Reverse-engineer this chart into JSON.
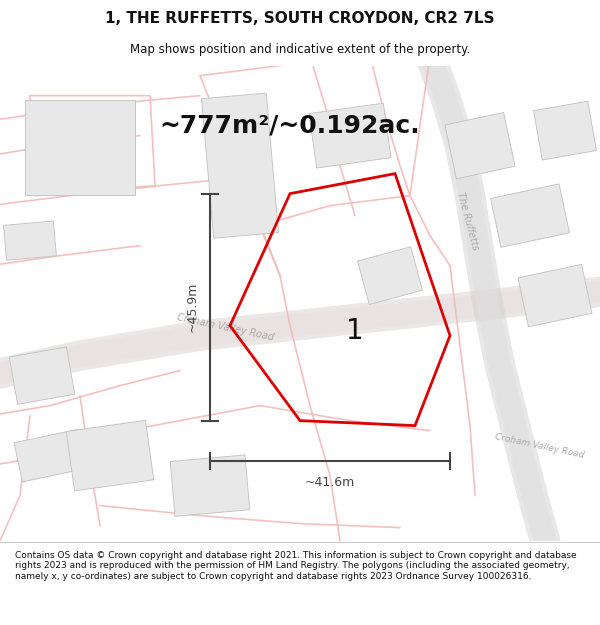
{
  "title": "1, THE RUFFETTS, SOUTH CROYDON, CR2 7LS",
  "subtitle": "Map shows position and indicative extent of the property.",
  "area_text": "~777m²/~0.192ac.",
  "label_number": "1",
  "dim_height": "~45.9m",
  "dim_width": "~41.6m",
  "footer": "Contains OS data © Crown copyright and database right 2021. This information is subject to Crown copyright and database rights 2023 and is reproduced with the permission of HM Land Registry. The polygons (including the associated geometry, namely x, y co-ordinates) are subject to Crown copyright and database rights 2023 Ordnance Survey 100026316.",
  "text_color": "#111111",
  "dim_color": "#444444",
  "road_label_color": "#aaaaaa",
  "plot_color": "#dd0000",
  "map_bg": "#ffffff",
  "road_line_color": "#f5b8b8",
  "road_gray_color": "#cccccc",
  "building_face": "#e8e8e8",
  "building_edge": "#c0c0c0",
  "title_fontsize": 11,
  "subtitle_fontsize": 8.5,
  "area_fontsize": 18,
  "footer_fontsize": 6.5
}
